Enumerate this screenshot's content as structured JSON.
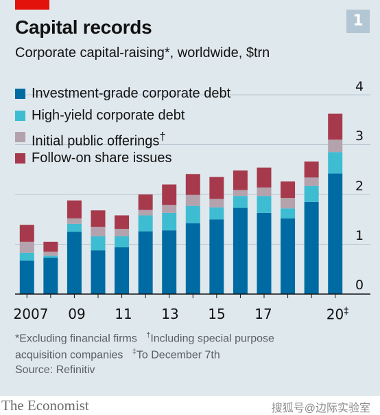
{
  "chart_number": "1",
  "title": "Capital records",
  "subtitle": "Corporate capital-raising*, worldwide, $trn",
  "notes": {
    "excluding": "*Excluding financial firms",
    "including_mark": "†",
    "including": "Including special purpose",
    "acquisition": "acquisition companies",
    "december_mark": "‡",
    "december": "To December 7th"
  },
  "source": "Source: Refinitiv",
  "brand": "The Economist",
  "watermark": "搜狐号@边际实验室",
  "colors": {
    "background": "#dfe8ed",
    "accent_red": "#e3120b",
    "investment_grade": "#006ba2",
    "high_yield": "#3ebcd2",
    "ipo": "#b4a2ad",
    "follow_on": "#a63a4c",
    "gridline": "#b7c6cf"
  },
  "chart_data": {
    "type": "bar",
    "stacked": true,
    "title": "Capital records",
    "subtitle": "Corporate capital-raising*, worldwide, $trn",
    "x": [
      2007,
      2008,
      2009,
      2010,
      2011,
      2012,
      2013,
      2014,
      2015,
      2016,
      2017,
      2018,
      2019,
      2020
    ],
    "x_tick_labels": [
      {
        "x": 2007,
        "label": "2007"
      },
      {
        "x": 2009,
        "label": "09"
      },
      {
        "x": 2011,
        "label": "11"
      },
      {
        "x": 2013,
        "label": "13"
      },
      {
        "x": 2015,
        "label": "15"
      },
      {
        "x": 2017,
        "label": "17"
      },
      {
        "x": 2020,
        "label": "20",
        "suffix": "‡"
      }
    ],
    "ylim": [
      0,
      4
    ],
    "y_ticks": [
      0,
      1,
      2,
      3,
      4
    ],
    "y_axis_side": "right",
    "grid": true,
    "legend_placement": "top-left",
    "series": [
      {
        "name": "Investment-grade corporate debt",
        "values": [
          0.67,
          0.73,
          1.25,
          0.88,
          0.94,
          1.26,
          1.28,
          1.42,
          1.5,
          1.73,
          1.63,
          1.52,
          1.85,
          2.42
        ]
      },
      {
        "name": "High-yield corporate debt",
        "values": [
          0.16,
          0.04,
          0.16,
          0.28,
          0.22,
          0.32,
          0.35,
          0.35,
          0.24,
          0.24,
          0.34,
          0.2,
          0.32,
          0.43
        ]
      },
      {
        "name": "Initial public offerings",
        "legend_suffix": "†",
        "values": [
          0.22,
          0.08,
          0.11,
          0.19,
          0.15,
          0.11,
          0.16,
          0.22,
          0.17,
          0.12,
          0.17,
          0.21,
          0.17,
          0.25
        ]
      },
      {
        "name": "Follow-on share issues",
        "values": [
          0.34,
          0.2,
          0.36,
          0.33,
          0.27,
          0.31,
          0.41,
          0.42,
          0.44,
          0.39,
          0.4,
          0.33,
          0.32,
          0.52
        ]
      }
    ]
  }
}
